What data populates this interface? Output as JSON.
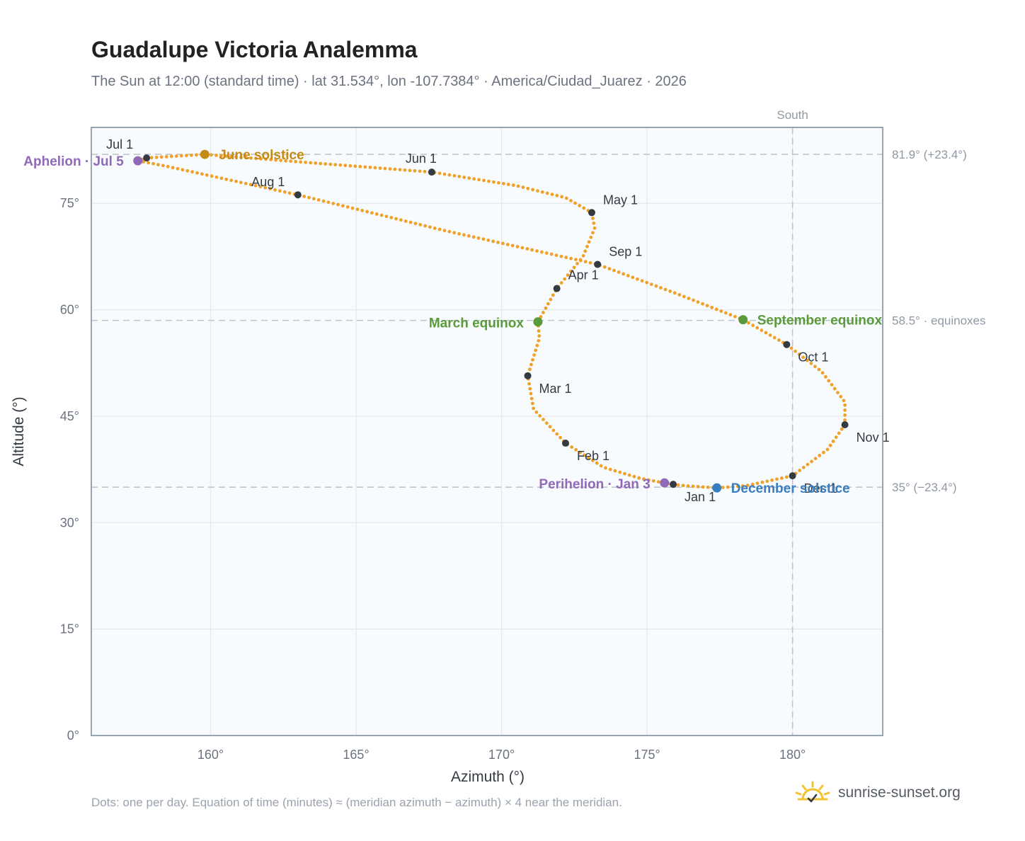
{
  "title": "Guadalupe Victoria Analemma",
  "subtitle": "The Sun at 12:00 (standard time) · lat 31.534°, lon -107.7384° · America/Ciudad_Juarez · 2026",
  "footnote": "Dots: one per day. Equation of time (minutes) ≈ (meridian azimuth − azimuth) × 4 near the meridian.",
  "brand": {
    "text": "sunrise-sunset.org",
    "icon": "sun-logo-icon"
  },
  "colors": {
    "path": "#f0a12a",
    "month_marker": "#333a42",
    "solstice_june": "#c58a13",
    "solstice_december": "#3a7dc0",
    "equinox": "#5b9a3b",
    "apsis": "#9069b8",
    "plot_bg": "#f8fbfd",
    "grid": "#e4e8ec",
    "reference_line": "#bfc5cc",
    "axis_text": "#6b7280"
  },
  "chart_data": {
    "type": "scatter",
    "xlabel": "Azimuth (°)",
    "ylabel": "Altitude (°)",
    "xlim": [
      155.9,
      183.1
    ],
    "ylim": [
      0,
      85.7
    ],
    "x_ticks": [
      160,
      165,
      170,
      175,
      180
    ],
    "x_tick_labels": [
      "160°",
      "165°",
      "170°",
      "175°",
      "180°"
    ],
    "y_ticks": [
      0,
      15,
      30,
      45,
      60,
      75
    ],
    "y_tick_labels": [
      "0°",
      "15°",
      "30°",
      "45°",
      "60°",
      "75°"
    ],
    "grid": true,
    "south_line": {
      "azimuth": 180,
      "label": "South"
    },
    "reference_lines": [
      {
        "altitude": 81.9,
        "label": "81.9° (+23.4°)"
      },
      {
        "altitude": 58.5,
        "label": "58.5° · equinoxes"
      },
      {
        "altitude": 35.0,
        "label": "35° (−23.4°)"
      }
    ],
    "path_points": [
      [
        175.9,
        35.4
      ],
      [
        175.6,
        35.6
      ],
      [
        174.8,
        36.2
      ],
      [
        173.5,
        37.8
      ],
      [
        172.2,
        41.2
      ],
      [
        171.1,
        46.0
      ],
      [
        170.9,
        50.7
      ],
      [
        171.3,
        56.0
      ],
      [
        171.25,
        58.3
      ],
      [
        171.9,
        63.0
      ],
      [
        172.8,
        67.5
      ],
      [
        173.2,
        71.5
      ],
      [
        173.1,
        73.7
      ],
      [
        172.2,
        75.8
      ],
      [
        170.5,
        77.5
      ],
      [
        167.6,
        79.4
      ],
      [
        163.5,
        80.7
      ],
      [
        159.8,
        81.9
      ],
      [
        157.8,
        81.4
      ],
      [
        157.5,
        81.0
      ],
      [
        158.4,
        80.3
      ],
      [
        163.0,
        76.2
      ],
      [
        168.0,
        71.2
      ],
      [
        173.3,
        66.4
      ],
      [
        176.0,
        62.3
      ],
      [
        178.3,
        58.6
      ],
      [
        179.8,
        55.1
      ],
      [
        181.0,
        51.3
      ],
      [
        181.8,
        47.0
      ],
      [
        181.8,
        43.8
      ],
      [
        181.2,
        40.3
      ],
      [
        180.0,
        36.6
      ],
      [
        178.4,
        35.2
      ],
      [
        177.4,
        34.9
      ],
      [
        176.3,
        35.2
      ],
      [
        175.9,
        35.4
      ]
    ],
    "month_markers": [
      {
        "label": "Jan 1",
        "az": 175.9,
        "alt": 35.4
      },
      {
        "label": "Feb 1",
        "az": 172.2,
        "alt": 41.2
      },
      {
        "label": "Mar 1",
        "az": 170.9,
        "alt": 50.7
      },
      {
        "label": "Apr 1",
        "az": 171.9,
        "alt": 63.0
      },
      {
        "label": "May 1",
        "az": 173.1,
        "alt": 73.7
      },
      {
        "label": "Jun 1",
        "az": 167.6,
        "alt": 79.4
      },
      {
        "label": "Jul 1",
        "az": 157.8,
        "alt": 81.4
      },
      {
        "label": "Aug 1",
        "az": 163.0,
        "alt": 76.2
      },
      {
        "label": "Sep 1",
        "az": 173.3,
        "alt": 66.4
      },
      {
        "label": "Oct 1",
        "az": 179.8,
        "alt": 55.1
      },
      {
        "label": "Nov 1",
        "az": 181.8,
        "alt": 43.8
      },
      {
        "label": "Dec 1",
        "az": 180.0,
        "alt": 36.6
      }
    ],
    "events": [
      {
        "label": "June solstice",
        "az": 159.8,
        "alt": 81.9,
        "color_key": "solstice_june"
      },
      {
        "label": "December solstice",
        "az": 177.4,
        "alt": 34.9,
        "color_key": "solstice_december"
      },
      {
        "label": "March equinox",
        "az": 171.25,
        "alt": 58.3,
        "color_key": "equinox"
      },
      {
        "label": "September equinox",
        "az": 178.3,
        "alt": 58.6,
        "color_key": "equinox"
      },
      {
        "label": "Aphelion · Jul 5",
        "az": 157.5,
        "alt": 81.0,
        "color_key": "apsis"
      },
      {
        "label": "Perihelion · Jan 3",
        "az": 175.6,
        "alt": 35.6,
        "color_key": "apsis"
      }
    ]
  }
}
